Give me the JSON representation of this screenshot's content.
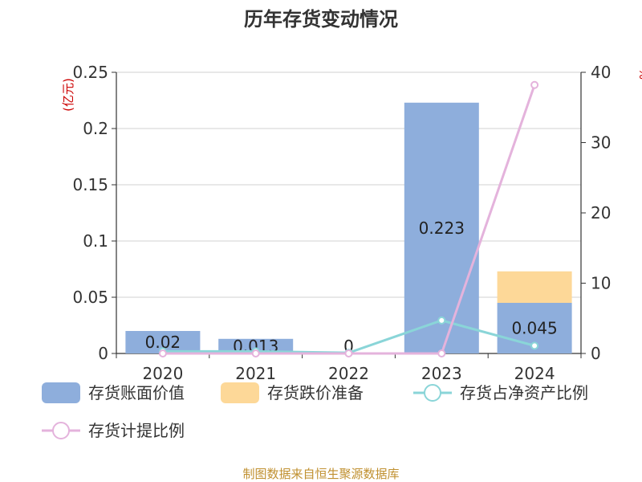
{
  "chart_data": {
    "type": "bar",
    "title": "历年存货变动情况",
    "categories": [
      "2020",
      "2021",
      "2022",
      "2023",
      "2024"
    ],
    "y_left": {
      "unit": "(亿元)",
      "ylim": [
        0,
        0.25
      ],
      "ticks": [
        "0",
        "0.05",
        "0.1",
        "0.15",
        "0.2",
        "0.25"
      ]
    },
    "y_right": {
      "unit": "%",
      "ylim": [
        0,
        40
      ],
      "ticks": [
        "0",
        "10",
        "20",
        "30",
        "40"
      ]
    },
    "series": [
      {
        "name": "存货账面价值",
        "kind": "bar",
        "stack": "s",
        "color": "#8eaedc",
        "values": [
          0.02,
          0.013,
          0,
          0.223,
          0.045
        ],
        "labels": [
          "0.02",
          "0.013",
          "0",
          "0.223",
          "0.045"
        ]
      },
      {
        "name": "存货跌价准备",
        "kind": "bar",
        "stack": "s",
        "color": "#fdd898",
        "values": [
          0,
          0,
          0,
          0,
          0.028
        ]
      },
      {
        "name": "存货占净资产比例",
        "kind": "line",
        "axis": "right",
        "color": "#8ad5d8",
        "values": [
          0.3,
          0.3,
          0.1,
          4.7,
          1.1
        ]
      },
      {
        "name": "存货计提比例",
        "kind": "line",
        "axis": "right",
        "color": "#e4b3dc",
        "values": [
          0,
          0,
          0,
          0,
          38.2
        ]
      }
    ],
    "grid": true,
    "legend_position": "bottom"
  },
  "footer": {
    "source": "制图数据来自恒生聚源数据库"
  }
}
